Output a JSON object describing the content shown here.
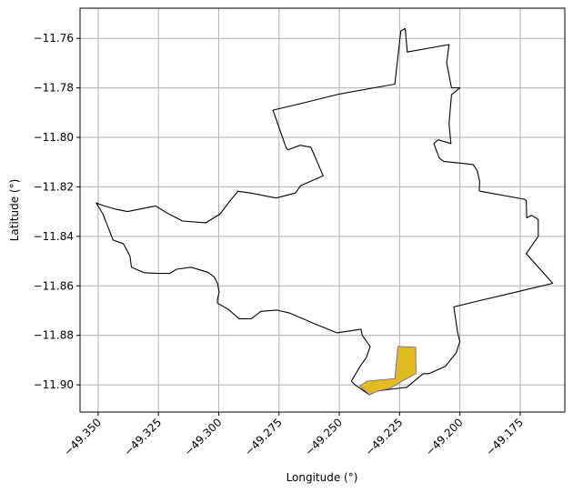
{
  "chart_data": {
    "type": "map",
    "title": "",
    "xlabel": "Longitude (°)",
    "ylabel": "Latitude (°)",
    "xlim": [
      -49.3575,
      -49.1565
    ],
    "ylim": [
      -11.911,
      -11.7478
    ],
    "grid": true,
    "xticks": [
      -49.35,
      -49.325,
      -49.3,
      -49.275,
      -49.25,
      -49.225,
      -49.2,
      -49.175
    ],
    "xtick_labels": [
      "−49.350",
      "−49.325",
      "−49.300",
      "−49.275",
      "−49.250",
      "−49.225",
      "−49.200",
      "−49.175"
    ],
    "yticks": [
      -11.76,
      -11.78,
      -11.8,
      -11.82,
      -11.84,
      -11.86,
      -11.88,
      -11.9
    ],
    "ytick_labels": [
      "−11.76",
      "−11.78",
      "−11.80",
      "−11.82",
      "−11.84",
      "−11.86",
      "−11.88",
      "−11.90"
    ],
    "colors": {
      "boundary_edge": "#000000",
      "highlight_fill": "#e0bc1f",
      "highlight_edge": "#6a5aa8",
      "grid": "#b0b0b0"
    },
    "boundary": [
      [
        -49.2245,
        -11.757
      ],
      [
        -49.2227,
        -11.756
      ],
      [
        -49.2218,
        -11.7655
      ],
      [
        -49.2045,
        -11.7625
      ],
      [
        -49.2055,
        -11.7698
      ],
      [
        -49.2035,
        -11.78
      ],
      [
        -49.2,
        -11.78
      ],
      [
        -49.2035,
        -11.7828
      ],
      [
        -49.2045,
        -11.7945
      ],
      [
        -49.2037,
        -11.8025
      ],
      [
        -49.209,
        -11.801
      ],
      [
        -49.2108,
        -11.8025
      ],
      [
        -49.2085,
        -11.8085
      ],
      [
        -49.2067,
        -11.8097
      ],
      [
        -49.1945,
        -11.811
      ],
      [
        -49.1928,
        -11.8135
      ],
      [
        -49.1918,
        -11.8178
      ],
      [
        -49.192,
        -11.8215
      ],
      [
        -49.1915,
        -11.8218
      ],
      [
        -49.1733,
        -11.825
      ],
      [
        -49.1725,
        -11.8255
      ],
      [
        -49.1723,
        -11.8325
      ],
      [
        -49.1703,
        -11.8315
      ],
      [
        -49.1675,
        -11.8332
      ],
      [
        -49.1675,
        -11.84
      ],
      [
        -49.1725,
        -11.847
      ],
      [
        -49.1615,
        -11.859
      ],
      [
        -49.1745,
        -11.862
      ],
      [
        -49.181,
        -11.8635
      ],
      [
        -49.192,
        -11.866
      ],
      [
        -49.2025,
        -11.8685
      ],
      [
        -49.201,
        -11.8785
      ],
      [
        -49.2,
        -11.8825
      ],
      [
        -49.2015,
        -11.887
      ],
      [
        -49.206,
        -11.8925
      ],
      [
        -49.2128,
        -11.8955
      ],
      [
        -49.2152,
        -11.8955
      ],
      [
        -49.222,
        -11.901
      ],
      [
        -49.229,
        -11.9018
      ],
      [
        -49.2345,
        -11.9025
      ],
      [
        -49.2375,
        -11.904
      ],
      [
        -49.2435,
        -11.9
      ],
      [
        -49.245,
        -11.8985
      ],
      [
        -49.241,
        -11.892
      ],
      [
        -49.2388,
        -11.889
      ],
      [
        -49.2372,
        -11.8845
      ],
      [
        -49.2405,
        -11.88
      ],
      [
        -49.241,
        -11.8775
      ],
      [
        -49.251,
        -11.879
      ],
      [
        -49.261,
        -11.875
      ],
      [
        -49.2705,
        -11.871
      ],
      [
        -49.276,
        -11.8698
      ],
      [
        -49.2825,
        -11.8703
      ],
      [
        -49.2865,
        -11.8733
      ],
      [
        -49.2915,
        -11.8733
      ],
      [
        -49.296,
        -11.8695
      ],
      [
        -49.3005,
        -11.867
      ],
      [
        -49.3005,
        -11.8655
      ],
      [
        -49.2998,
        -11.8625
      ],
      [
        -49.3005,
        -11.859
      ],
      [
        -49.3018,
        -11.8565
      ],
      [
        -49.3045,
        -11.8545
      ],
      [
        -49.3115,
        -11.8525
      ],
      [
        -49.3175,
        -11.8533
      ],
      [
        -49.3203,
        -11.855
      ],
      [
        -49.3252,
        -11.855
      ],
      [
        -49.331,
        -11.8547
      ],
      [
        -49.3362,
        -11.8525
      ],
      [
        -49.3368,
        -11.848
      ],
      [
        -49.3395,
        -11.843
      ],
      [
        -49.3438,
        -11.8415
      ],
      [
        -49.348,
        -11.831
      ],
      [
        -49.3508,
        -11.8265
      ],
      [
        -49.3475,
        -11.8277
      ],
      [
        -49.3428,
        -11.829
      ],
      [
        -49.3378,
        -11.83
      ],
      [
        -49.3262,
        -11.8277
      ],
      [
        -49.321,
        -11.8308
      ],
      [
        -49.315,
        -11.8338
      ],
      [
        -49.3053,
        -11.8345
      ],
      [
        -49.2995,
        -11.831
      ],
      [
        -49.2948,
        -11.825
      ],
      [
        -49.292,
        -11.8218
      ],
      [
        -49.2868,
        -11.8225
      ],
      [
        -49.2762,
        -11.8245
      ],
      [
        -49.2682,
        -11.8225
      ],
      [
        -49.266,
        -11.8195
      ],
      [
        -49.2567,
        -11.8155
      ],
      [
        -49.2618,
        -11.804
      ],
      [
        -49.2662,
        -11.8032
      ],
      [
        -49.2712,
        -11.805
      ],
      [
        -49.272,
        -11.8043
      ],
      [
        -49.2775,
        -11.789
      ],
      [
        -49.2645,
        -11.786
      ],
      [
        -49.25,
        -11.7825
      ],
      [
        -49.227,
        -11.7785
      ],
      [
        -49.2245,
        -11.757
      ]
    ],
    "highlight": [
      [
        -49.2257,
        -11.8845
      ],
      [
        -49.2183,
        -11.8848
      ],
      [
        -49.2182,
        -11.8955
      ],
      [
        -49.224,
        -11.8985
      ],
      [
        -49.229,
        -11.9015
      ],
      [
        -49.234,
        -11.9025
      ],
      [
        -49.2375,
        -11.904
      ],
      [
        -49.2415,
        -11.9005
      ],
      [
        -49.2385,
        -11.8985
      ],
      [
        -49.227,
        -11.8975
      ],
      [
        -49.2257,
        -11.8845
      ]
    ]
  }
}
